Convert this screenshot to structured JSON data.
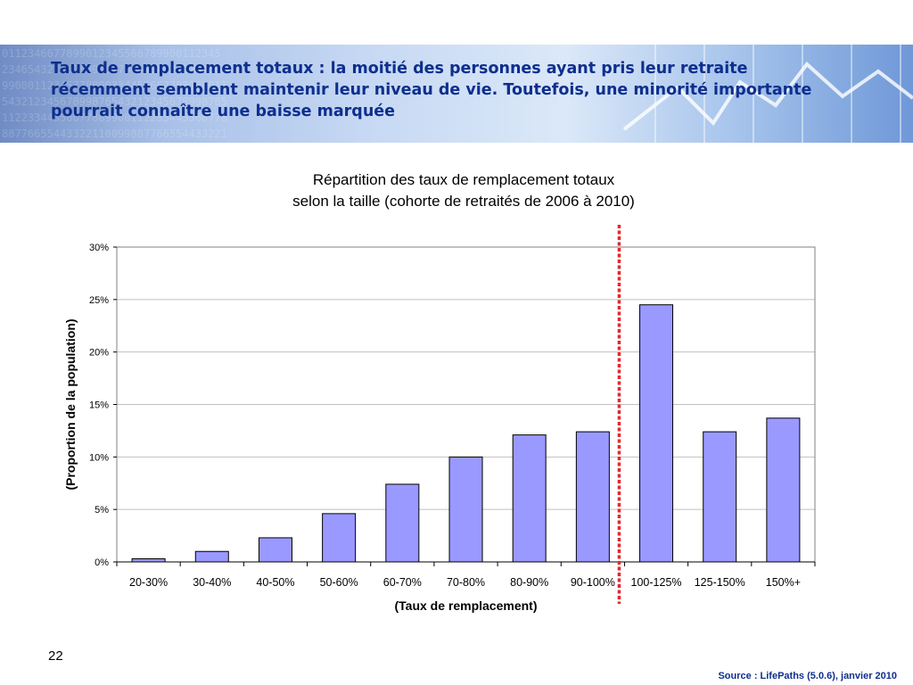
{
  "slide": {
    "title": "Taux de remplacement totaux : la moitié des personnes ayant pris leur retraite récemment semblent maintenir leur niveau de vie. Toutefois, une minorité importante pourrait connaître une baisse marquée",
    "page_number": "22",
    "source": "Source : LifePaths  (5.0.6), janvier 2010"
  },
  "colors": {
    "title_text": "#0e2f8e",
    "bar_fill": "#9999ff",
    "bar_stroke": "#000000",
    "marker_line": "#e8262b",
    "gridline": "#c0c0c0"
  },
  "chart_data": {
    "type": "bar",
    "title": "Répartition des taux de remplacement totaux",
    "subtitle": "selon la taille (cohorte de retraités de 2006 à 2010)",
    "xlabel": "(Taux de remplacement)",
    "ylabel": "(Proportion de la population)",
    "categories": [
      "20-30%",
      "30-40%",
      "40-50%",
      "50-60%",
      "60-70%",
      "70-80%",
      "80-90%",
      "90-100%",
      "100-125%",
      "125-150%",
      "150%+"
    ],
    "values": [
      0.3,
      1.0,
      2.3,
      4.6,
      7.4,
      10.0,
      12.1,
      12.4,
      24.5,
      12.4,
      13.7
    ],
    "ylim": [
      0,
      30
    ],
    "y_ticks": [
      0,
      5,
      10,
      15,
      20,
      25,
      30
    ],
    "y_tick_labels": [
      "0%",
      "5%",
      "10%",
      "15%",
      "20%",
      "25%",
      "30%"
    ],
    "grid": true,
    "legend": "none",
    "marker_between_categories": [
      "90-100%",
      "100-125%"
    ]
  }
}
